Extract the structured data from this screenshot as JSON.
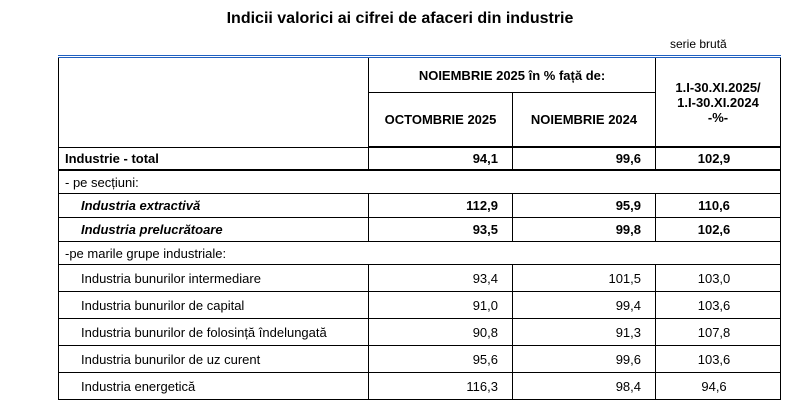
{
  "header": {
    "title": "Indicii valorici ai cifrei de afaceri din industrie",
    "note": "serie brută"
  },
  "table": {
    "group_header": "NOIEMBRIE 2025 în % față de:",
    "columns": [
      "OCTOMBRIE 2025",
      "NOIEMBRIE 2024"
    ],
    "cumulative_header": [
      "1.I-30.XI.2025/",
      "1.I-30.XI.2024",
      "-%-"
    ],
    "rows": [
      [
        "Industrie - total",
        "94,1",
        "99,6",
        "102,9"
      ],
      [
        "- pe secțiuni:"
      ],
      [
        "Industria extractivă",
        "112,9",
        "95,9",
        "110,6"
      ],
      [
        "Industria prelucrătoare",
        "93,5",
        "99,8",
        "102,6"
      ],
      [
        "-pe marile grupe industriale:"
      ],
      [
        "Industria bunurilor intermediare",
        "93,4",
        "101,5",
        "103,0"
      ],
      [
        "Industria bunurilor de capital",
        "91,0",
        "99,4",
        "103,6"
      ],
      [
        "Industria bunurilor de folosință îndelungată",
        "90,8",
        "91,3",
        "107,8"
      ],
      [
        "Industria bunurilor de uz curent",
        "95,6",
        "99,6",
        "103,6"
      ],
      [
        "Industria energetică",
        "116,3",
        "98,4",
        "94,6"
      ]
    ]
  }
}
